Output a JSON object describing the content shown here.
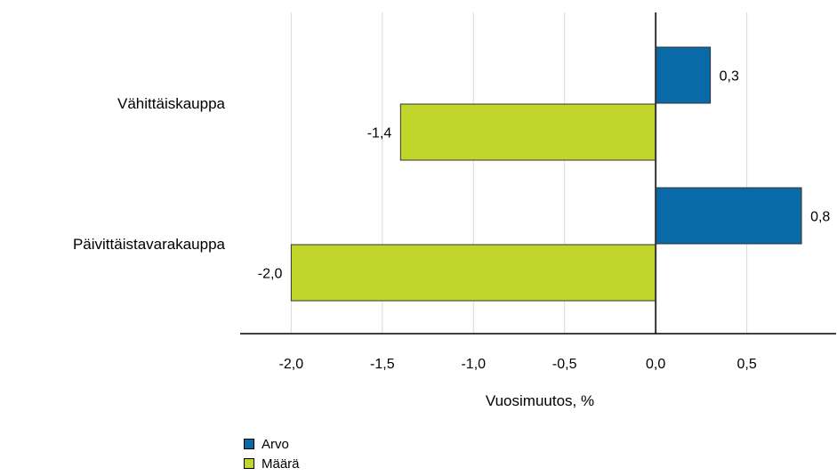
{
  "chart_data": {
    "type": "bar",
    "orientation": "horizontal",
    "categories": [
      "Vähittäiskauppa",
      "Päivittäistavarakauppa"
    ],
    "series": [
      {
        "name": "Arvo",
        "color": "#0a6aa8",
        "values": [
          0.3,
          0.8
        ],
        "labels": [
          "0,3",
          "0,8"
        ]
      },
      {
        "name": "Määrä",
        "color": "#c2d52b",
        "values": [
          -1.4,
          -2.0
        ],
        "labels": [
          "-1,4",
          "-2,0"
        ]
      }
    ],
    "xlabel": "Vuosimuutos, %",
    "xlim": [
      -2.28,
      0.99
    ],
    "ticks": [
      -2.0,
      -1.5,
      -1.0,
      -0.5,
      0.0,
      0.5
    ],
    "tick_labels": [
      "-2,0",
      "-1,5",
      "-1,0",
      "-0,5",
      "0,0",
      "0,5"
    ],
    "grid": true,
    "legend_position": "bottom-left"
  }
}
